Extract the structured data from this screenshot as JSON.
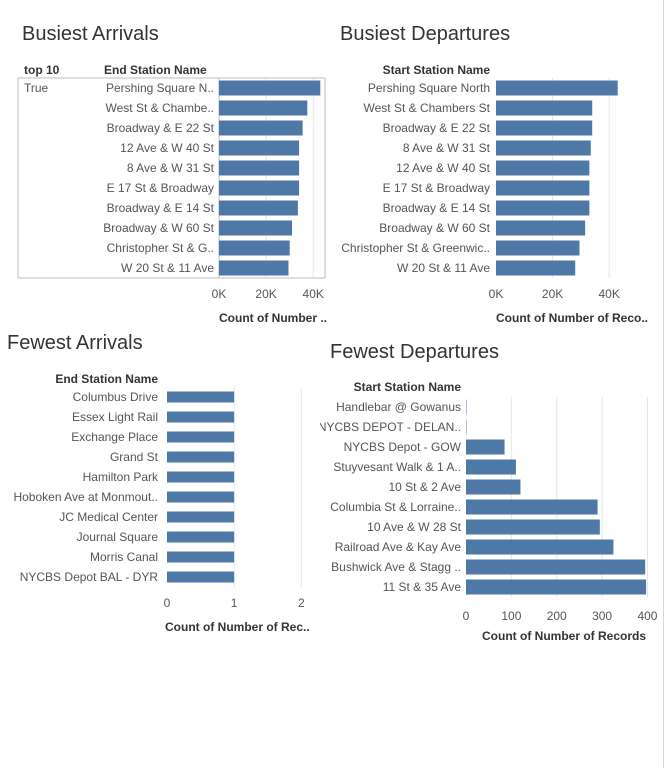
{
  "colors": {
    "bar": "#4e79a7",
    "grid": "#e6e6e6",
    "axis": "#bdbdbd",
    "text": "#555555"
  },
  "chart_data": [
    {
      "id": "busiest-arrivals",
      "type": "bar",
      "orientation": "horizontal",
      "title": "Busiest Arrivals",
      "group_header": "top 10",
      "group_value": "True",
      "category_header": "End Station Name",
      "categories": [
        "Pershing Square N..",
        "West St & Chambe..",
        "Broadway & E 22 St",
        "12 Ave & W 40 St",
        "8 Ave & W 31 St",
        "E 17 St & Broadway",
        "Broadway & E 14 St",
        "Broadway & W 60 St",
        "Christopher St & G..",
        "W 20 St & 11 Ave"
      ],
      "values": [
        43000,
        37500,
        35500,
        34000,
        34000,
        34000,
        33500,
        31000,
        30000,
        29500
      ],
      "xlim": [
        0,
        45000
      ],
      "xticks": [
        {
          "v": 0,
          "label": "0K"
        },
        {
          "v": 20000,
          "label": "20K"
        },
        {
          "v": 40000,
          "label": "40K"
        }
      ],
      "xlabel": "Count of Number ..",
      "grid": true
    },
    {
      "id": "busiest-departures",
      "type": "bar",
      "orientation": "horizontal",
      "title": "Busiest Departures",
      "category_header": "Start Station Name",
      "categories": [
        "Pershing Square North",
        "West St & Chambers St",
        "Broadway & E 22 St",
        "8 Ave & W 31 St",
        "12 Ave & W 40 St",
        "E 17 St & Broadway",
        "Broadway & E 14 St",
        "Broadway & W 60 St",
        "Christopher St & Greenwic..",
        "W 20 St & 11 Ave"
      ],
      "values": [
        43000,
        34000,
        34000,
        33500,
        33000,
        33000,
        33000,
        31500,
        29500,
        28000
      ],
      "xlim": [
        0,
        47000
      ],
      "xticks": [
        {
          "v": 0,
          "label": "0K"
        },
        {
          "v": 20000,
          "label": "20K"
        },
        {
          "v": 40000,
          "label": "40K"
        }
      ],
      "xlabel": "Count of Number of Reco..",
      "grid": true
    },
    {
      "id": "fewest-arrivals",
      "type": "bar",
      "orientation": "horizontal",
      "title": "Fewest Arrivals",
      "category_header": "End Station Name",
      "categories": [
        "Columbus Drive",
        "Essex Light Rail",
        "Exchange Place",
        "Grand St",
        "Hamilton Park",
        "Hoboken Ave at Monmout..",
        "JC Medical Center",
        "Journal Square",
        "Morris Canal",
        "NYCBS Depot BAL - DYR"
      ],
      "values": [
        1,
        1,
        1,
        1,
        1,
        1,
        1,
        1,
        1,
        1
      ],
      "xlim": [
        0,
        2.1
      ],
      "xticks": [
        {
          "v": 0,
          "label": "0"
        },
        {
          "v": 1,
          "label": "1"
        },
        {
          "v": 2,
          "label": "2"
        }
      ],
      "xlabel": "Count of Number of Rec..",
      "grid": true
    },
    {
      "id": "fewest-departures",
      "type": "bar",
      "orientation": "horizontal",
      "title": "Fewest Departures",
      "category_header": "Start Station Name",
      "categories": [
        "Handlebar @ Gowanus",
        "NYCBS DEPOT - DELAN..",
        "NYCBS Depot - GOW",
        "Stuyvesant Walk & 1 A..",
        "10 St & 2 Ave",
        "Columbia St & Lorraine..",
        "10 Ave & W 28 St",
        "Railroad Ave & Kay Ave",
        "Bushwick Ave & Stagg ..",
        "11 St & 35 Ave"
      ],
      "values": [
        1,
        1,
        85,
        110,
        120,
        290,
        295,
        325,
        395,
        397
      ],
      "xlim": [
        0,
        410
      ],
      "xticks": [
        {
          "v": 0,
          "label": "0"
        },
        {
          "v": 100,
          "label": "100"
        },
        {
          "v": 200,
          "label": "200"
        },
        {
          "v": 300,
          "label": "300"
        },
        {
          "v": 400,
          "label": "400"
        }
      ],
      "xlabel": "Count of Number of Records",
      "grid": true
    }
  ]
}
